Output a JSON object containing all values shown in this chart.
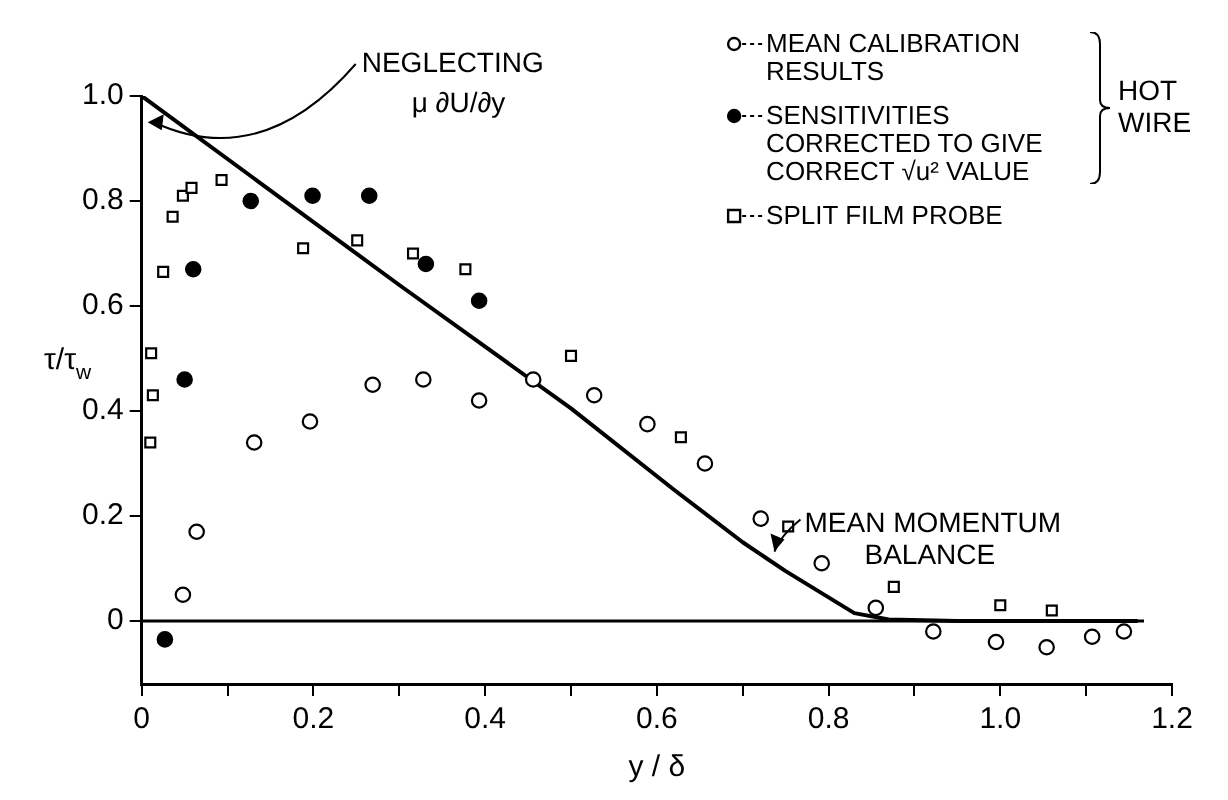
{
  "chart_data": {
    "type": "scatter",
    "xlabel": "y / δ",
    "ylabel": "τ/τ$_{w}$",
    "xlim": [
      0,
      1.2
    ],
    "ylim": [
      -0.12,
      1.0
    ],
    "xticks": [
      0,
      {
        "value": 0.1,
        "label": null
      },
      0.2,
      {
        "value": 0.3,
        "label": null
      },
      0.4,
      {
        "value": 0.5,
        "label": null
      },
      0.6,
      {
        "value": 0.7,
        "label": null
      },
      0.8,
      {
        "value": 0.9,
        "label": null
      },
      {
        "value": 1.0,
        "label": "1.0"
      },
      {
        "value": 1.1,
        "label": null
      },
      1.2
    ],
    "yticks": [
      0,
      0.2,
      0.4,
      0.6,
      0.8,
      {
        "value": 1.0,
        "label": "1.0"
      }
    ],
    "grid": false,
    "legend": "top right",
    "series": [
      {
        "name": "MEAN CALIBRATION RESULTS",
        "marker": "circle",
        "color": "#ffffff",
        "x": [
          0.048,
          0.064,
          0.131,
          0.196,
          0.269,
          0.328,
          0.393,
          0.456,
          0.527,
          0.589,
          0.656,
          0.721,
          0.792,
          0.855,
          0.922,
          0.995,
          1.054,
          1.107,
          1.144
        ],
        "values": [
          0.05,
          0.17,
          0.34,
          0.38,
          0.45,
          0.46,
          0.42,
          0.46,
          0.43,
          0.375,
          0.3,
          0.195,
          0.11,
          0.025,
          -0.02,
          -0.04,
          -0.05,
          -0.03,
          -0.02
        ]
      },
      {
        "name": "SENSITIVITIES CORRECTED TO GIVE CORRECT √u² VALUE",
        "marker": "circle",
        "color": "#000000",
        "x": [
          0.027,
          0.05,
          0.06,
          0.127,
          0.199,
          0.265,
          0.331,
          0.393
        ],
        "values": [
          -0.035,
          0.46,
          0.67,
          0.8,
          0.81,
          0.81,
          0.68,
          0.61
        ]
      },
      {
        "name": "SPLIT FILM PROBE",
        "marker": "square",
        "color": "#ffffff",
        "x": [
          0.01,
          0.013,
          0.011,
          0.025,
          0.036,
          0.048,
          0.058,
          0.093,
          0.129,
          0.188,
          0.251,
          0.316,
          0.377,
          0.5,
          0.628,
          0.753,
          0.876,
          1.0,
          1.06
        ],
        "values": [
          0.34,
          0.43,
          0.51,
          0.665,
          0.77,
          0.81,
          0.825,
          0.84,
          null,
          0.71,
          0.725,
          0.7,
          0.67,
          0.505,
          0.35,
          0.18,
          0.065,
          0.03,
          0.02
        ]
      },
      {
        "name": "MEAN MOMENTUM BALANCE",
        "type": "line",
        "marker": "none",
        "color": "#000000",
        "x": [
          0,
          0.3,
          0.5,
          0.62,
          0.7,
          0.75,
          0.8,
          0.83,
          0.87,
          0.95,
          1.16
        ],
        "values": [
          1.0,
          0.64,
          0.405,
          0.25,
          0.15,
          0.095,
          0.045,
          0.015,
          0.003,
          0,
          0
        ]
      }
    ],
    "ref_lines": [
      {
        "axis": "y",
        "value": 0,
        "color": "#000000"
      }
    ],
    "annotations": [
      "NEGLECTING μ ∂U/∂y",
      "HOT WIRE"
    ]
  }
}
